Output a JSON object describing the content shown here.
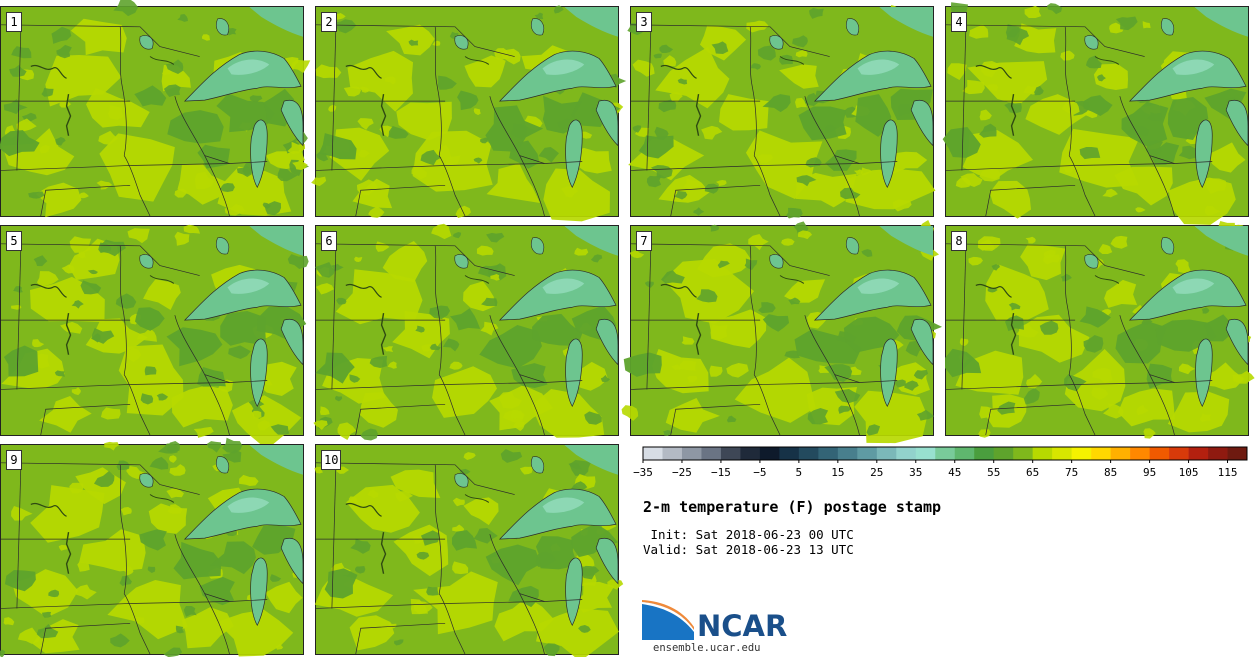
{
  "title": "2-m temperature (F) postage stamp",
  "init_line": " Init: Sat 2018-06-23 00 UTC",
  "valid_line": "Valid: Sat 2018-06-23 13 UTC",
  "logo": {
    "name": "NCAR",
    "url": "ensemble.ucar.edu"
  },
  "panels": [
    {
      "label": "1"
    },
    {
      "label": "2"
    },
    {
      "label": "3"
    },
    {
      "label": "4"
    },
    {
      "label": "5"
    },
    {
      "label": "6"
    },
    {
      "label": "7"
    },
    {
      "label": "8"
    },
    {
      "label": "9"
    },
    {
      "label": "10"
    }
  ],
  "colors": {
    "base_field": "#7fb81c",
    "warm_field": "#b7d900",
    "cool_field": "#5ea32c",
    "lake": "#6dc58f",
    "lake_light": "#8dd8b4",
    "border_line": "#2b2b2b"
  },
  "chart_data": {
    "type": "heatmap",
    "variable": "2-m temperature (F)",
    "members": 10,
    "colorbar": {
      "ticks": [
        -35,
        -25,
        -15,
        -5,
        5,
        15,
        25,
        35,
        45,
        55,
        65,
        75,
        85,
        95,
        105,
        115
      ],
      "tick_labels": [
        "−35",
        "−25",
        "−15",
        "−5",
        "5",
        "15",
        "25",
        "35",
        "45",
        "55",
        "65",
        "75",
        "85",
        "95",
        "105",
        "115"
      ],
      "range": [
        -35,
        120
      ],
      "step": 5,
      "colors": [
        "#d7dde5",
        "#b3bac4",
        "#8e97a4",
        "#6a7484",
        "#3e4756",
        "#1f2a3a",
        "#0e1a2b",
        "#163247",
        "#234a5e",
        "#336476",
        "#487f8d",
        "#5f9ba3",
        "#7bb8b9",
        "#92d2cc",
        "#98e0cf",
        "#79cb9a",
        "#5fb76e",
        "#4a9e3e",
        "#5ea32c",
        "#7fb81c",
        "#b7d900",
        "#d7e600",
        "#f5f200",
        "#ffd800",
        "#ffb000",
        "#ff8800",
        "#f05a00",
        "#d83a0a",
        "#b3200f",
        "#8f1a10",
        "#6e1a10"
      ]
    }
  }
}
